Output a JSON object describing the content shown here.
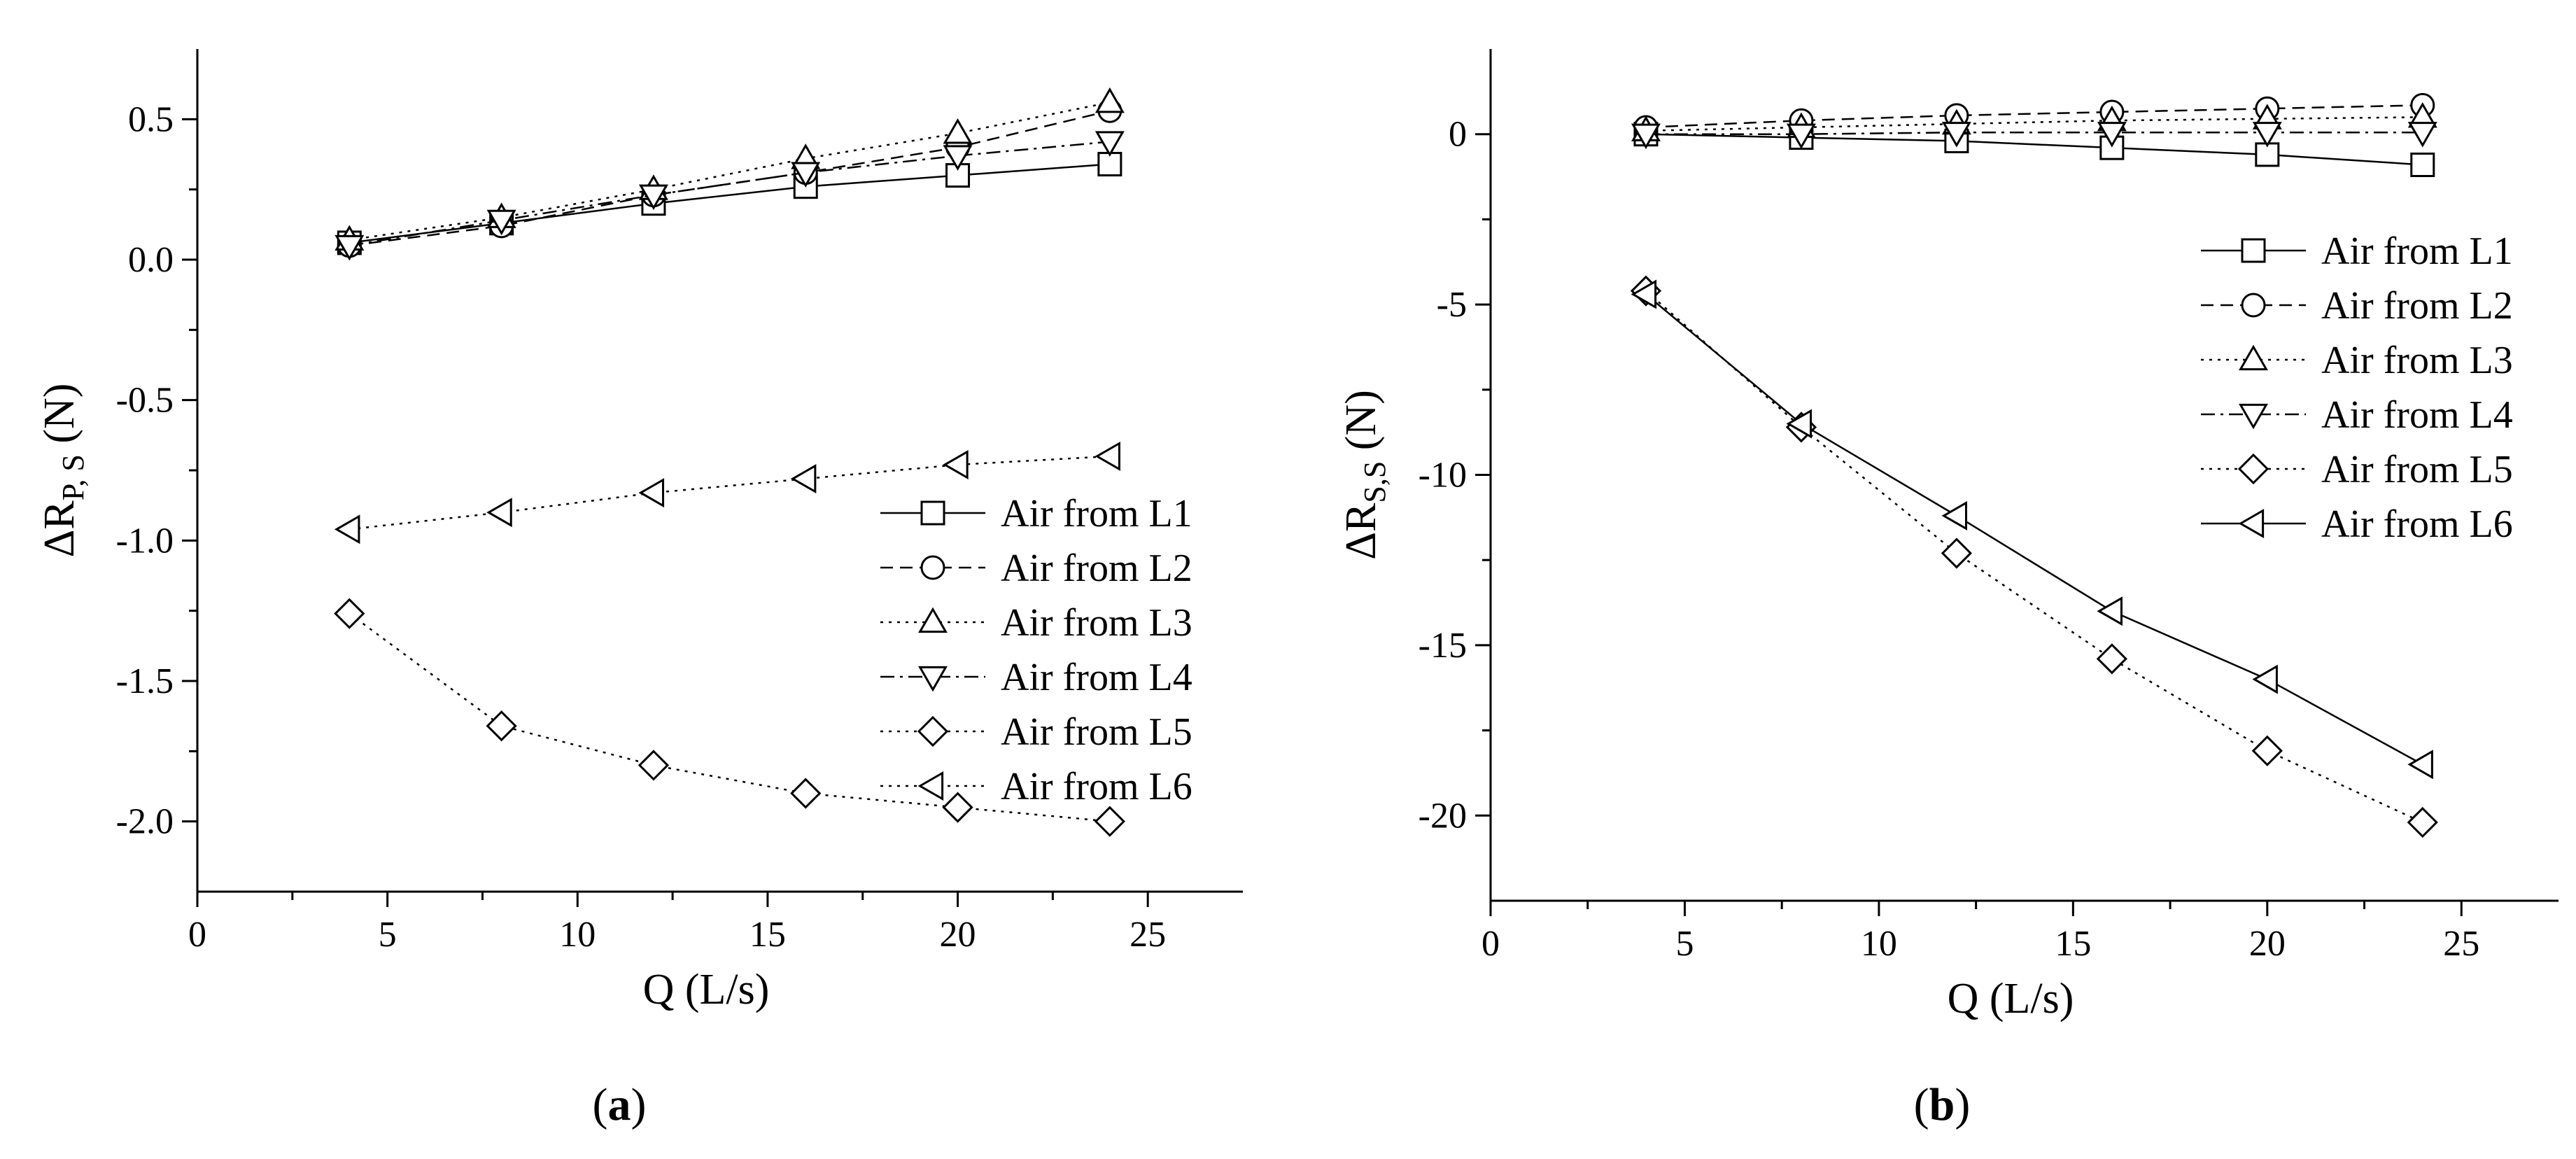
{
  "chart_data": [
    {
      "type": "line",
      "panel_label": "(a)",
      "panel_letter": "a",
      "xlabel": "Q  (L/s)",
      "ylabel_main": "ΔR",
      "ylabel_sub": "P, S",
      "ylabel_unit": "(N)",
      "xlim": [
        0,
        27.5
      ],
      "ylim": [
        -2.25,
        0.75
      ],
      "xticks": [
        0,
        5,
        10,
        15,
        20,
        25
      ],
      "xtick_labels": [
        "0",
        "5",
        "10",
        "15",
        "20",
        "25"
      ],
      "yticks": [
        0.5,
        0.0,
        -0.5,
        -1.0,
        -1.5,
        -2.0
      ],
      "ytick_labels": [
        "0.5",
        "0.0",
        "-0.5",
        "-1.0",
        "-1.5",
        "-2.0"
      ],
      "grid": false,
      "legend_position": "middle-right",
      "x": [
        4,
        8,
        12,
        16,
        20,
        24
      ],
      "series": [
        {
          "name": "Air from L1",
          "marker": "square",
          "dash": "solid",
          "values": [
            0.06,
            0.13,
            0.2,
            0.26,
            0.3,
            0.34
          ]
        },
        {
          "name": "Air from L2",
          "marker": "circle",
          "dash": "dashed",
          "values": [
            0.05,
            0.12,
            0.23,
            0.31,
            0.4,
            0.53
          ]
        },
        {
          "name": "Air from L3",
          "marker": "triangle-up",
          "dash": "dotted",
          "values": [
            0.07,
            0.15,
            0.25,
            0.36,
            0.45,
            0.56
          ]
        },
        {
          "name": "Air from L4",
          "marker": "triangle-down",
          "dash": "dashdot",
          "values": [
            0.05,
            0.14,
            0.23,
            0.31,
            0.37,
            0.42
          ]
        },
        {
          "name": "Air from L5",
          "marker": "diamond",
          "dash": "dotted",
          "values": [
            -1.26,
            -1.66,
            -1.8,
            -1.9,
            -1.95,
            -2.0
          ]
        },
        {
          "name": "Air from L6",
          "marker": "triangle-left",
          "dash": "dotted",
          "values": [
            -0.96,
            -0.9,
            -0.83,
            -0.78,
            -0.73,
            -0.7
          ]
        }
      ]
    },
    {
      "type": "line",
      "panel_label": "(b)",
      "panel_letter": "b",
      "xlabel": "Q  (L/s)",
      "ylabel_main": "ΔR",
      "ylabel_sub": "S,S",
      "ylabel_unit": "(N)",
      "xlim": [
        0,
        27.5
      ],
      "ylim": [
        -22.5,
        2.5
      ],
      "xticks": [
        0,
        5,
        10,
        15,
        20,
        25
      ],
      "xtick_labels": [
        "0",
        "5",
        "10",
        "15",
        "20",
        "25"
      ],
      "yticks": [
        0,
        -5,
        -10,
        -15,
        -20
      ],
      "ytick_labels": [
        "0",
        "-5",
        "-10",
        "-15",
        "-20"
      ],
      "grid": false,
      "legend_position": "top-right",
      "x": [
        4,
        8,
        12,
        16,
        20,
        24
      ],
      "series": [
        {
          "name": "Air from L1",
          "marker": "square",
          "dash": "solid",
          "values": [
            0.0,
            -0.1,
            -0.2,
            -0.4,
            -0.6,
            -0.9
          ]
        },
        {
          "name": "Air from L2",
          "marker": "circle",
          "dash": "dashed",
          "values": [
            0.2,
            0.4,
            0.55,
            0.65,
            0.75,
            0.85
          ]
        },
        {
          "name": "Air from L3",
          "marker": "triangle-up",
          "dash": "dotted",
          "values": [
            0.1,
            0.2,
            0.3,
            0.4,
            0.45,
            0.5
          ]
        },
        {
          "name": "Air from L4",
          "marker": "triangle-down",
          "dash": "dashdot",
          "values": [
            0.0,
            0.0,
            0.05,
            0.05,
            0.05,
            0.05
          ]
        },
        {
          "name": "Air from L5",
          "marker": "diamond",
          "dash": "dotted",
          "values": [
            -4.6,
            -8.6,
            -12.3,
            -15.4,
            -18.1,
            -20.2
          ]
        },
        {
          "name": "Air from L6",
          "marker": "triangle-left",
          "dash": "solid",
          "values": [
            -4.7,
            -8.5,
            -11.2,
            -14.0,
            -16.0,
            -18.5
          ]
        }
      ]
    }
  ]
}
